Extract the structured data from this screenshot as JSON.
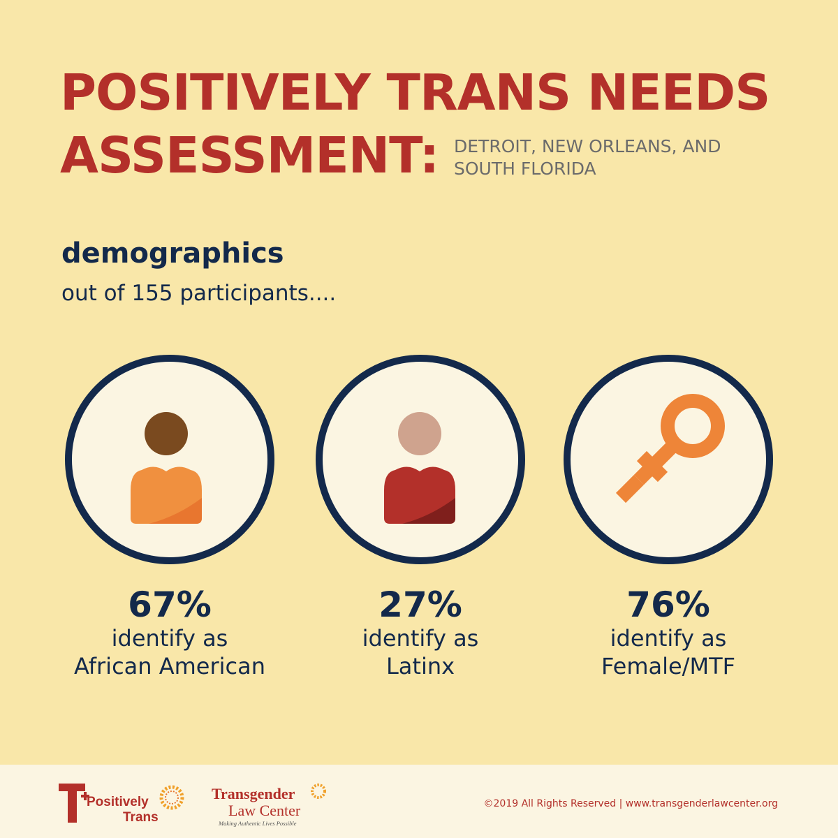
{
  "header": {
    "title_line1": "POSITIVELY TRANS NEEDS",
    "title_line2": "ASSESSMENT:",
    "subtitle_line1": "DETROIT, NEW ORLEANS, AND",
    "subtitle_line2": "SOUTH FLORIDA"
  },
  "section": {
    "heading": "demographics",
    "subheading": "out of 155 participants...."
  },
  "stats": [
    {
      "percent": "67%",
      "line1": "identify as",
      "line2": "African American",
      "icon": "person-icon",
      "head_color": "#7a4a1f",
      "body_color": "#f0903f"
    },
    {
      "percent": "27%",
      "line1": "identify as",
      "line2": "Latinx",
      "icon": "person-icon",
      "head_color": "#cfa38e",
      "body_color": "#b3302a"
    },
    {
      "percent": "76%",
      "line1": "identify as",
      "line2": "Female/MTF",
      "icon": "female-symbol-icon",
      "icon_color": "#ee8538"
    }
  ],
  "footer": {
    "logo1_line1": "Positively",
    "logo1_line2": "Trans",
    "logo2_line1": "Transgender",
    "logo2_line2": "Law Center",
    "logo2_tagline": "Making Authentic Lives Possible",
    "copyright": "©2019 All Rights Reserved | www.transgenderlawcenter.org"
  },
  "colors": {
    "background": "#f9e7a9",
    "title_red": "#b3302a",
    "navy": "#13294b",
    "subtitle_gray": "#6b6b6b"
  }
}
